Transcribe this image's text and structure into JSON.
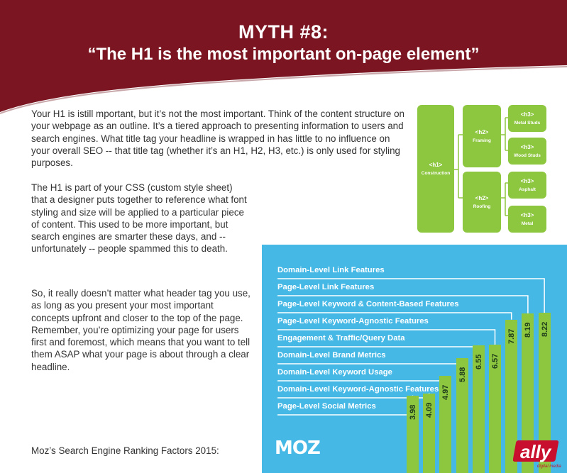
{
  "header": {
    "title": "MYTH #8:",
    "subtitle": "“The H1 is the most important on-page element”"
  },
  "body": {
    "paragraph1": "Your H1 is istill mportant, but it’s not the most important. Think of the content structure on your webpage as an outline. It’s a tiered approach to presenting information to users and search engines. What title tag your headline is wrapped in has little to no influence on your overall SEO -- that title tag (whether it’s an H1, H2, H3, etc.) is only used for styling purposes.",
    "paragraph2": "The H1 is part of your CSS (custom style sheet) that a designer puts together to reference what font styling and size will be applied to a particular piece of content. This used to be more important, but search engines are smarter these days, and -- unfortunately -- people spammed this to death.",
    "paragraph3": "So, it really doesn’t matter what header tag you use, as long as you present your most important concepts upfront and closer to the top of the page. Remember, you’re optimizing your page for users first and foremost, which means that you want to tell them ASAP what your page is about through a clear headline.",
    "caption": "Moz’s Search Engine Ranking Factors 2015:"
  },
  "hierarchy": {
    "h1": {
      "tag": "<h1>",
      "label": "Construction"
    },
    "h2a": {
      "tag": "<h2>",
      "label": "Framing"
    },
    "h2b": {
      "tag": "<h2>",
      "label": "Roofing"
    },
    "h3a": {
      "tag": "<h3>",
      "label": "Metal Studs"
    },
    "h3b": {
      "tag": "<h3>",
      "label": "Wood Studs"
    },
    "h3c": {
      "tag": "<h3>",
      "label": "Asphalt"
    },
    "h3d": {
      "tag": "<h3>",
      "label": "Metal"
    }
  },
  "brand": {
    "moz": "MOZ",
    "ally": "ally",
    "ally_sub": "digital media"
  },
  "colors": {
    "banner": "#7a1521",
    "chart_bg": "#45b8e6",
    "bar": "#8dc63f"
  },
  "chart_data": {
    "type": "bar",
    "categories": [
      "Page-Level Social Metrics",
      "Domain-Level Keyword-Agnostic Features",
      "Domain-Level Keyword Usage",
      "Domain-Level Brand Metrics",
      "Engagement & Traffic/Query Data",
      "Page-Level Keyword-Agnostic Features",
      "Page-Level Keyword & Content-Based Features",
      "Page-Level Link Features",
      "Domain-Level Link Features"
    ],
    "values": [
      3.98,
      4.09,
      4.97,
      5.88,
      6.55,
      6.57,
      7.87,
      8.19,
      8.22
    ],
    "value_labels": [
      "3.98",
      "4.09",
      "4.97",
      "5.88",
      "6.55",
      "6.57",
      "7.87",
      "8.19",
      "8.22"
    ]
  }
}
